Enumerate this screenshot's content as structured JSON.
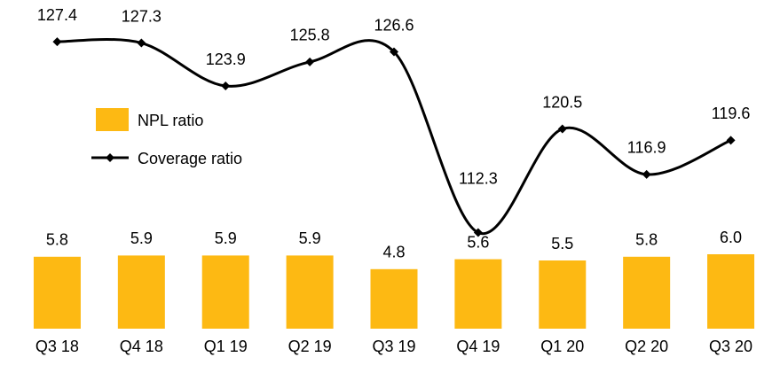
{
  "chart_data": {
    "type": "bar-line",
    "categories": [
      "Q3 18",
      "Q4 18",
      "Q1 19",
      "Q2 19",
      "Q3 19",
      "Q4 19",
      "Q1 20",
      "Q2 20",
      "Q3 20"
    ],
    "series": [
      {
        "name": "NPL ratio",
        "type": "bar",
        "color": "#FDB913",
        "values": [
          5.8,
          5.9,
          5.9,
          5.9,
          4.8,
          5.6,
          5.5,
          5.8,
          6.0
        ],
        "value_labels": [
          "5.8",
          "5.9",
          "5.9",
          "5.9",
          "4.8",
          "5.6",
          "5.5",
          "5.8",
          "6.0"
        ]
      },
      {
        "name": "Coverage ratio",
        "type": "line",
        "color": "#000000",
        "axis": "y2",
        "values": [
          127.4,
          127.3,
          123.9,
          125.8,
          126.6,
          112.3,
          120.5,
          116.9,
          119.6
        ]
      }
    ],
    "ylim": [
      0,
      26.5
    ],
    "y2lim": [
      104.7,
      130.7
    ]
  }
}
